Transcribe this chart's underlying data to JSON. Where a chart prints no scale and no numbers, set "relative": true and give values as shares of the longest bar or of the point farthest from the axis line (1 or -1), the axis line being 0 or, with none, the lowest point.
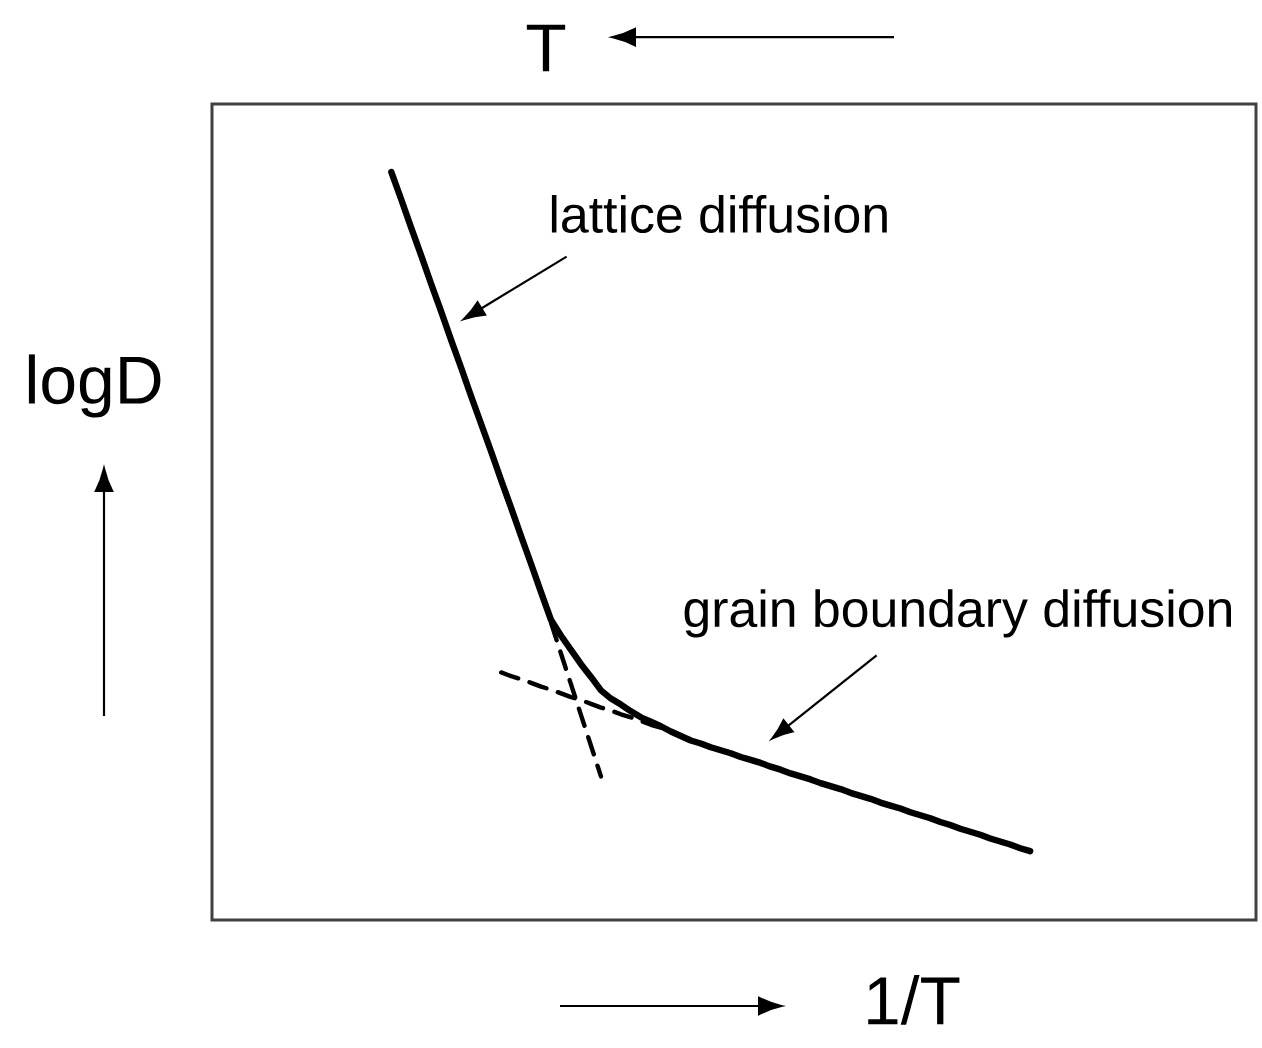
{
  "chart_data": {
    "type": "line",
    "relative": true,
    "xlabel": "1/T",
    "x2label": "T",
    "ylabel": "logD",
    "marker": "none",
    "categories": [
      null,
      null,
      null,
      null,
      null,
      null,
      null,
      null,
      null,
      null,
      null,
      null,
      null,
      null,
      null,
      null,
      null,
      null,
      null,
      null,
      null,
      null,
      null,
      null,
      null,
      null,
      null,
      null,
      null,
      null,
      null,
      null,
      null,
      null,
      null,
      null,
      null,
      null,
      null,
      null,
      null,
      null,
      null,
      null,
      null,
      null,
      null,
      null,
      null,
      null,
      null,
      null,
      null,
      null,
      null,
      null,
      null,
      null,
      null,
      null,
      null,
      null,
      null,
      null,
      null
    ],
    "series": [
      {
        "color": "#000000",
        "line_style": "solid",
        "values": [
          1.0,
          0.963,
          0.925,
          0.888,
          0.85,
          0.813,
          0.775,
          0.738,
          0.7,
          0.663,
          0.626,
          0.588,
          0.551,
          0.513,
          0.476,
          0.438,
          0.401,
          0.38,
          0.361,
          0.342,
          0.325,
          0.307,
          0.296,
          0.288,
          0.279,
          0.271,
          0.265,
          0.259,
          0.252,
          0.246,
          0.24,
          0.236,
          0.231,
          0.227,
          0.223,
          0.218,
          0.214,
          0.21,
          0.205,
          0.201,
          0.196,
          0.192,
          0.188,
          0.183,
          0.179,
          0.175,
          0.17,
          0.166,
          0.162,
          0.157,
          0.153,
          0.149,
          0.144,
          0.14,
          0.136,
          0.131,
          0.127,
          0.122,
          0.118,
          0.114,
          0.109,
          0.105,
          0.101,
          0.096,
          0.092
        ]
      },
      {
        "color": "#000000",
        "line_style": "dashed",
        "values": [
          null,
          null,
          null,
          null,
          null,
          null,
          null,
          null,
          null,
          null,
          null,
          null,
          null,
          null,
          null,
          null,
          0.397,
          0.356,
          0.315,
          0.274,
          0.233,
          0.192,
          null,
          null,
          null,
          null,
          null,
          null,
          null,
          null,
          null,
          null,
          null,
          null,
          null,
          null,
          null,
          null,
          null,
          null,
          null,
          null,
          null,
          null,
          null,
          null,
          null,
          null,
          null,
          null,
          null,
          null,
          null,
          null,
          null,
          null,
          null,
          null,
          null,
          null,
          null,
          null,
          null,
          null,
          null
        ]
      },
      {
        "color": "#000000",
        "line_style": "dashed",
        "values": [
          null,
          null,
          null,
          null,
          null,
          null,
          null,
          null,
          null,
          null,
          null,
          0.331,
          0.326,
          0.322,
          0.317,
          0.312,
          0.308,
          0.303,
          0.298,
          0.294,
          0.289,
          0.284,
          0.28,
          0.275,
          0.271,
          0.266,
          0.261,
          0.257,
          0.252,
          null,
          null,
          null,
          null,
          null,
          null,
          null,
          null,
          null,
          null,
          null,
          null,
          null,
          null,
          null,
          null,
          null,
          null,
          null,
          null,
          null,
          null,
          null,
          null,
          null,
          null,
          null,
          null,
          null,
          null,
          null,
          null,
          null,
          null,
          null,
          null
        ]
      }
    ],
    "annotations": [
      "lattice diffusion",
      "grain boundary diffusion"
    ]
  }
}
